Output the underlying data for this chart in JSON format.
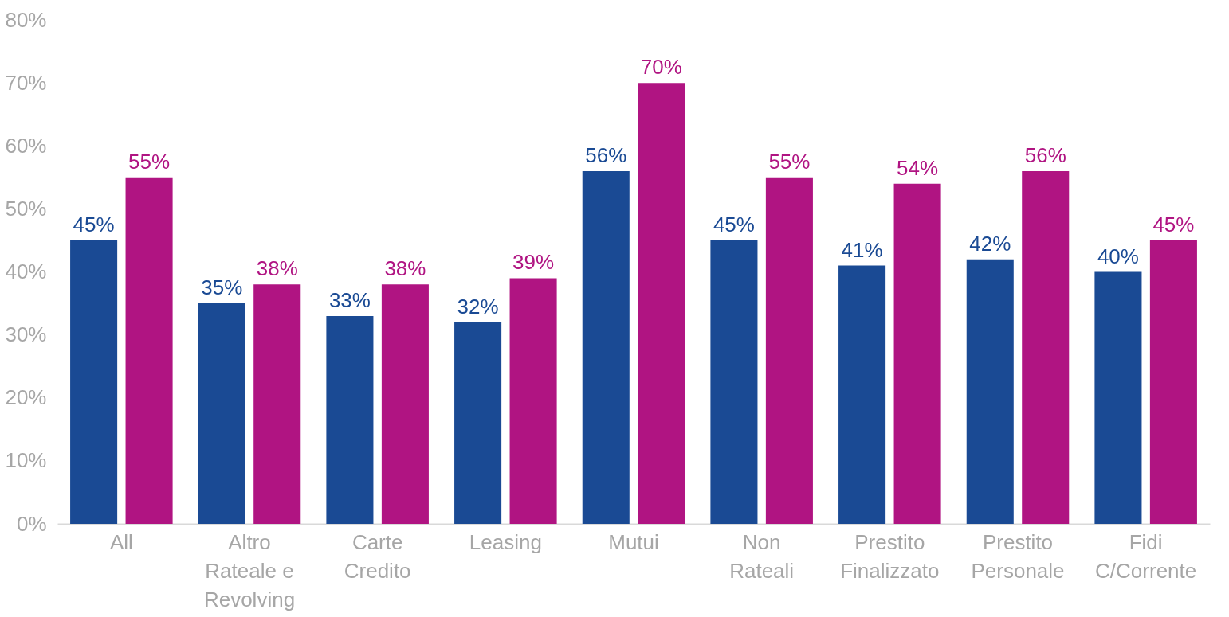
{
  "chart_data": {
    "type": "bar",
    "categories": [
      "All",
      "Altro Rateale e Revolving",
      "Carte Credito",
      "Leasing",
      "Mutui",
      "Non Rateali",
      "Prestito Finalizzato",
      "Prestito Personale",
      "Fidi C/Corrente"
    ],
    "series": [
      {
        "color": "#1a4a94",
        "values": [
          45,
          35,
          33,
          32,
          56,
          45,
          41,
          42,
          40
        ],
        "value_labels": [
          "45%",
          "35%",
          "33%",
          "32%",
          "56%",
          "45%",
          "41%",
          "42%",
          "40%"
        ]
      },
      {
        "color": "#b01482",
        "values": [
          55,
          38,
          38,
          39,
          70,
          55,
          54,
          56,
          45
        ],
        "value_labels": [
          "55%",
          "38%",
          "38%",
          "39%",
          "70%",
          "55%",
          "54%",
          "56%",
          "45%"
        ]
      }
    ],
    "ylim": [
      0,
      80
    ],
    "yticks": [
      {
        "value": 0,
        "label": "0%"
      },
      {
        "value": 10,
        "label": "10%"
      },
      {
        "value": 20,
        "label": "20%"
      },
      {
        "value": 30,
        "label": "30%"
      },
      {
        "value": 40,
        "label": "40%"
      },
      {
        "value": 50,
        "label": "50%"
      },
      {
        "value": 60,
        "label": "60%"
      },
      {
        "value": 70,
        "label": "70%"
      },
      {
        "value": 80,
        "label": "80%"
      }
    ],
    "grid": false
  }
}
